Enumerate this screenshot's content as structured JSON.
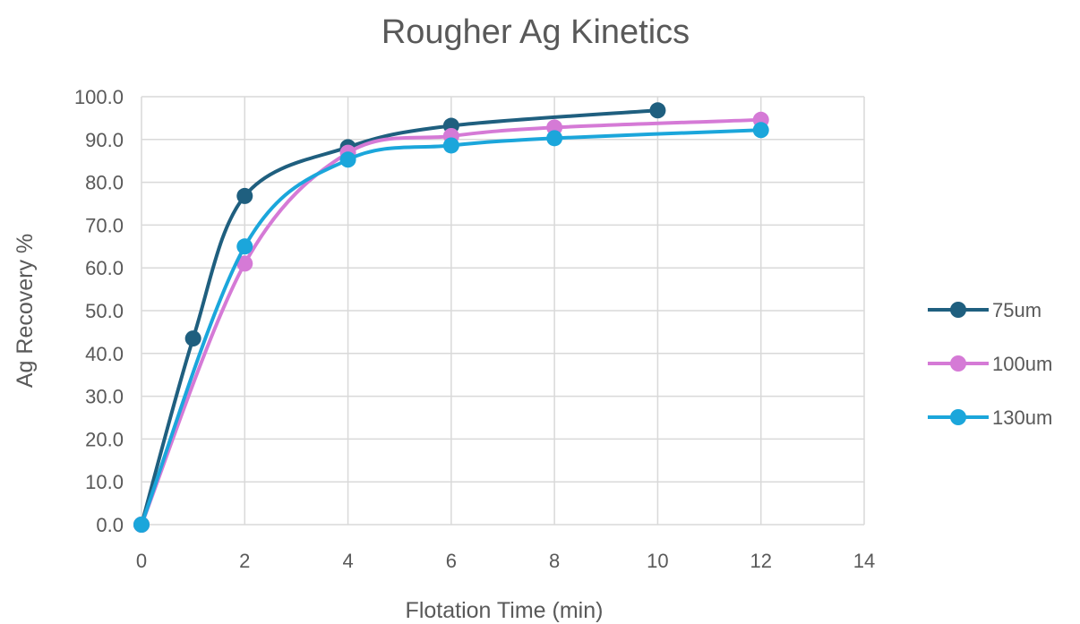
{
  "chart_data": {
    "type": "scatter",
    "title": "Rougher Ag Kinetics",
    "xlabel": "Flotation Time (min)",
    "ylabel": "Ag Recovery %",
    "xlim": [
      0,
      14
    ],
    "ylim": [
      0,
      100
    ],
    "x_ticks": [
      "0",
      "2",
      "4",
      "6",
      "8",
      "10",
      "12",
      "14"
    ],
    "y_ticks": [
      "0.0",
      "10.0",
      "20.0",
      "30.0",
      "40.0",
      "50.0",
      "60.0",
      "70.0",
      "80.0",
      "90.0",
      "100.0"
    ],
    "grid": true,
    "smooth_lines": true,
    "legend_position": "right",
    "series": [
      {
        "name": "75um",
        "color": "#1f5f7f",
        "x": [
          0,
          1,
          2,
          4,
          6,
          10
        ],
        "y": [
          0.0,
          43.5,
          76.8,
          88.2,
          93.2,
          96.8
        ]
      },
      {
        "name": "100um",
        "color": "#d57ad6",
        "x": [
          0,
          2,
          4,
          6,
          8,
          12
        ],
        "y": [
          0.0,
          61.0,
          86.9,
          90.8,
          92.8,
          94.6
        ]
      },
      {
        "name": "130um",
        "color": "#1ba6db",
        "x": [
          0,
          2,
          4,
          6,
          8,
          12
        ],
        "y": [
          0.0,
          65.0,
          85.3,
          88.6,
          90.3,
          92.2
        ]
      }
    ]
  }
}
